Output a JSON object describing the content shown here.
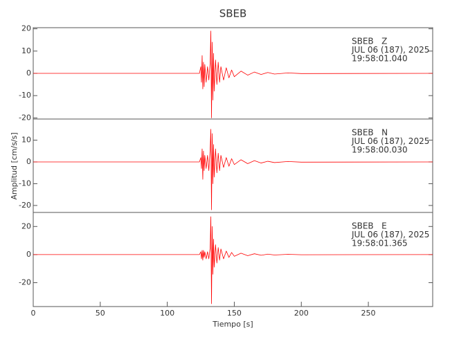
{
  "chart_data": [
    {
      "type": "line",
      "title": "SBEB",
      "annotation": [
        "SBEB   Z",
        "JUL 06 (187), 2025",
        "19:58:01.040"
      ],
      "x": [
        0,
        124,
        125,
        125.5,
        126,
        126.5,
        127,
        127.5,
        128,
        129,
        130,
        131,
        132,
        132.5,
        133,
        133.5,
        134,
        134.5,
        135,
        136,
        137,
        138,
        139,
        140,
        142,
        144,
        146,
        148,
        150,
        155,
        160,
        165,
        170,
        175,
        180,
        190,
        200,
        298
      ],
      "series": [
        {
          "color": "#ff0000",
          "values": [
            0,
            0,
            3,
            -4,
            8,
            -7,
            5,
            -6,
            4,
            -4,
            3,
            -3,
            5,
            19,
            -20,
            14,
            -12,
            9,
            -8,
            6,
            -5,
            5,
            -4,
            3,
            -3,
            2.5,
            -2,
            1.5,
            -1.5,
            1,
            -0.8,
            0.6,
            -0.5,
            0.4,
            -0.3,
            0.2,
            -0.1,
            0
          ]
        }
      ],
      "xlim": [
        0,
        298
      ],
      "ylim": [
        -20.5,
        20.5
      ],
      "yticks": [
        -20,
        -10,
        0,
        10,
        20
      ]
    },
    {
      "type": "line",
      "ylabel": "Amplitud [cm/s/s]",
      "annotation": [
        "SBEB   N",
        "JUL 06 (187), 2025",
        "19:58:00.030"
      ],
      "x": [
        0,
        124,
        125,
        125.5,
        126,
        126.5,
        127,
        127.5,
        128,
        129,
        130,
        131,
        132,
        132.5,
        133,
        133.5,
        134,
        134.5,
        135,
        136,
        137,
        138,
        139,
        140,
        142,
        144,
        146,
        148,
        150,
        155,
        160,
        165,
        170,
        175,
        180,
        190,
        200,
        298
      ],
      "series": [
        {
          "color": "#ff0000",
          "values": [
            0,
            0,
            2,
            -3,
            6,
            -8,
            5,
            -4,
            3,
            -3,
            3,
            -4,
            6,
            15,
            -22,
            13,
            -10,
            8,
            -7,
            6,
            -5,
            4,
            -4,
            3,
            -2.5,
            2,
            -2,
            1.5,
            -1.2,
            1,
            -0.8,
            0.6,
            -0.5,
            0.3,
            -0.3,
            0.2,
            -0.1,
            0
          ]
        }
      ],
      "xlim": [
        0,
        298
      ],
      "ylim": [
        -23.2,
        19.7
      ],
      "yticks": [
        -20,
        -10,
        0,
        10
      ]
    },
    {
      "type": "line",
      "xlabel": "Tiempo [s]",
      "annotation": [
        "SBEB   E",
        "JUL 06 (187), 2025",
        "19:58:01.365"
      ],
      "x": [
        0,
        124,
        125,
        125.5,
        126,
        126.5,
        127,
        127.5,
        128,
        129,
        130,
        131,
        132,
        132.5,
        133,
        133.5,
        134,
        134.5,
        135,
        136,
        137,
        138,
        139,
        140,
        142,
        144,
        146,
        148,
        150,
        155,
        160,
        165,
        170,
        175,
        180,
        190,
        200,
        298
      ],
      "series": [
        {
          "color": "#ff0000",
          "values": [
            0,
            0,
            2,
            -3,
            3,
            -4,
            3,
            -2,
            2,
            -3,
            2,
            -3,
            5,
            27,
            -35,
            20,
            -14,
            11,
            -9,
            7,
            -6,
            5,
            -4,
            4,
            -3,
            2.5,
            -2,
            1.5,
            -1.2,
            1,
            -0.8,
            0.6,
            -0.5,
            0.3,
            -0.3,
            0.2,
            -0.1,
            0
          ]
        }
      ],
      "xlim": [
        0,
        298
      ],
      "xticks": [
        0,
        50,
        100,
        150,
        200,
        250
      ],
      "ylim": [
        -37,
        30
      ],
      "yticks": [
        -20,
        0,
        20
      ]
    }
  ]
}
